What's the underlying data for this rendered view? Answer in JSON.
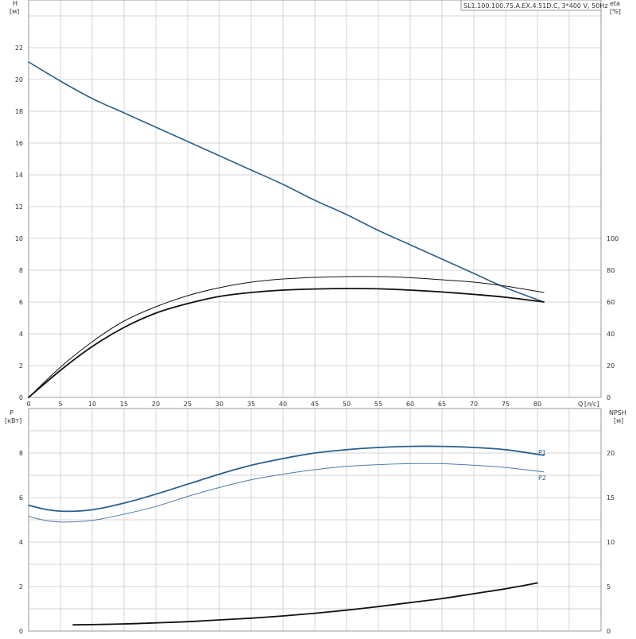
{
  "chart_title": "SL1.100.100.75.A.EX.4.51D.C, 3*400 V, 50Hz",
  "colors": {
    "blue": "#2b5f8e",
    "light_blue": "#4d7aa6",
    "black": "#111111",
    "grid": "#d4d4d4"
  },
  "chart_data": [
    {
      "type": "line",
      "panel": "top",
      "ylabel_left": "H",
      "ylabel_left_unit": "[м]",
      "ylabel_right": "eta",
      "ylabel_right_unit": "[%]",
      "xlabel": "Q",
      "xlabel_unit": "[л/с]",
      "xlim": [
        0,
        90
      ],
      "ylim_left": [
        0,
        25
      ],
      "ylim_right": [
        0,
        250
      ],
      "x_ticks": [
        0,
        5,
        10,
        15,
        20,
        25,
        30,
        35,
        40,
        45,
        50,
        55,
        60,
        65,
        70,
        75,
        80
      ],
      "y_left_ticks": [
        0,
        2,
        4,
        6,
        8,
        10,
        12,
        14,
        16,
        18,
        20,
        22
      ],
      "y_right_ticks": [
        0,
        20,
        40,
        60,
        80,
        100
      ],
      "grid": true,
      "series": [
        {
          "axis": "left",
          "color": "#2b5f8e",
          "width": 1.6,
          "x": [
            0,
            5,
            10,
            15,
            20,
            25,
            30,
            35,
            40,
            45,
            50,
            55,
            60,
            65,
            70,
            75,
            81
          ],
          "y": [
            21.1,
            19.9,
            18.8,
            17.9,
            17.0,
            16.1,
            15.2,
            14.3,
            13.4,
            12.4,
            11.5,
            10.5,
            9.6,
            8.7,
            7.8,
            6.9,
            6.0
          ]
        },
        {
          "axis": "right",
          "color": "#111111",
          "width": 1.0,
          "x": [
            0,
            5,
            10,
            15,
            20,
            25,
            30,
            35,
            40,
            45,
            50,
            55,
            60,
            65,
            70,
            75,
            81
          ],
          "y": [
            0,
            19,
            35,
            48,
            57,
            64,
            69,
            72.5,
            74.5,
            75.5,
            76,
            76,
            75.3,
            74,
            72.5,
            70,
            66
          ]
        },
        {
          "axis": "right",
          "color": "#111111",
          "width": 1.8,
          "x": [
            0,
            5,
            10,
            15,
            20,
            25,
            30,
            35,
            40,
            45,
            50,
            55,
            60,
            65,
            70,
            75,
            81
          ],
          "y": [
            0,
            17,
            32,
            44,
            53,
            59,
            63.5,
            66,
            67.5,
            68.2,
            68.5,
            68.3,
            67.5,
            66.3,
            64.8,
            63,
            60
          ]
        }
      ]
    },
    {
      "type": "line",
      "panel": "bottom",
      "ylabel_left": "P",
      "ylabel_left_unit": "[кВт]",
      "ylabel_right": "NPSH",
      "ylabel_right_unit": "[м]",
      "xlim": [
        0,
        90
      ],
      "ylim_left": [
        0,
        10
      ],
      "ylim_right": [
        0,
        25
      ],
      "y_left_ticks": [
        0,
        2,
        4,
        6,
        8
      ],
      "y_right_ticks": [
        0,
        5,
        10,
        15,
        20
      ],
      "grid": true,
      "series": [
        {
          "name": "P1",
          "axis": "left",
          "color": "#2b5f8e",
          "width": 1.8,
          "x": [
            0,
            3,
            6,
            10,
            15,
            20,
            25,
            30,
            35,
            40,
            45,
            50,
            55,
            60,
            65,
            70,
            75,
            81
          ],
          "y": [
            5.65,
            5.45,
            5.38,
            5.45,
            5.75,
            6.15,
            6.6,
            7.05,
            7.45,
            7.75,
            8.0,
            8.15,
            8.25,
            8.3,
            8.3,
            8.25,
            8.15,
            7.9
          ]
        },
        {
          "name": "P2",
          "axis": "left",
          "color": "#4d7aa6",
          "width": 1.0,
          "x": [
            0,
            3,
            6,
            10,
            15,
            20,
            25,
            30,
            35,
            40,
            45,
            50,
            55,
            60,
            65,
            70,
            75,
            81
          ],
          "y": [
            5.15,
            4.95,
            4.9,
            4.97,
            5.25,
            5.6,
            6.05,
            6.45,
            6.8,
            7.05,
            7.25,
            7.4,
            7.48,
            7.52,
            7.52,
            7.45,
            7.35,
            7.15
          ]
        },
        {
          "axis": "right",
          "color": "#111111",
          "width": 1.8,
          "x": [
            7,
            10,
            15,
            20,
            25,
            30,
            35,
            40,
            45,
            50,
            55,
            60,
            65,
            70,
            75,
            80
          ],
          "y": [
            0.7,
            0.72,
            0.8,
            0.92,
            1.05,
            1.25,
            1.45,
            1.7,
            2.0,
            2.35,
            2.75,
            3.2,
            3.65,
            4.2,
            4.75,
            5.4
          ]
        }
      ]
    }
  ]
}
